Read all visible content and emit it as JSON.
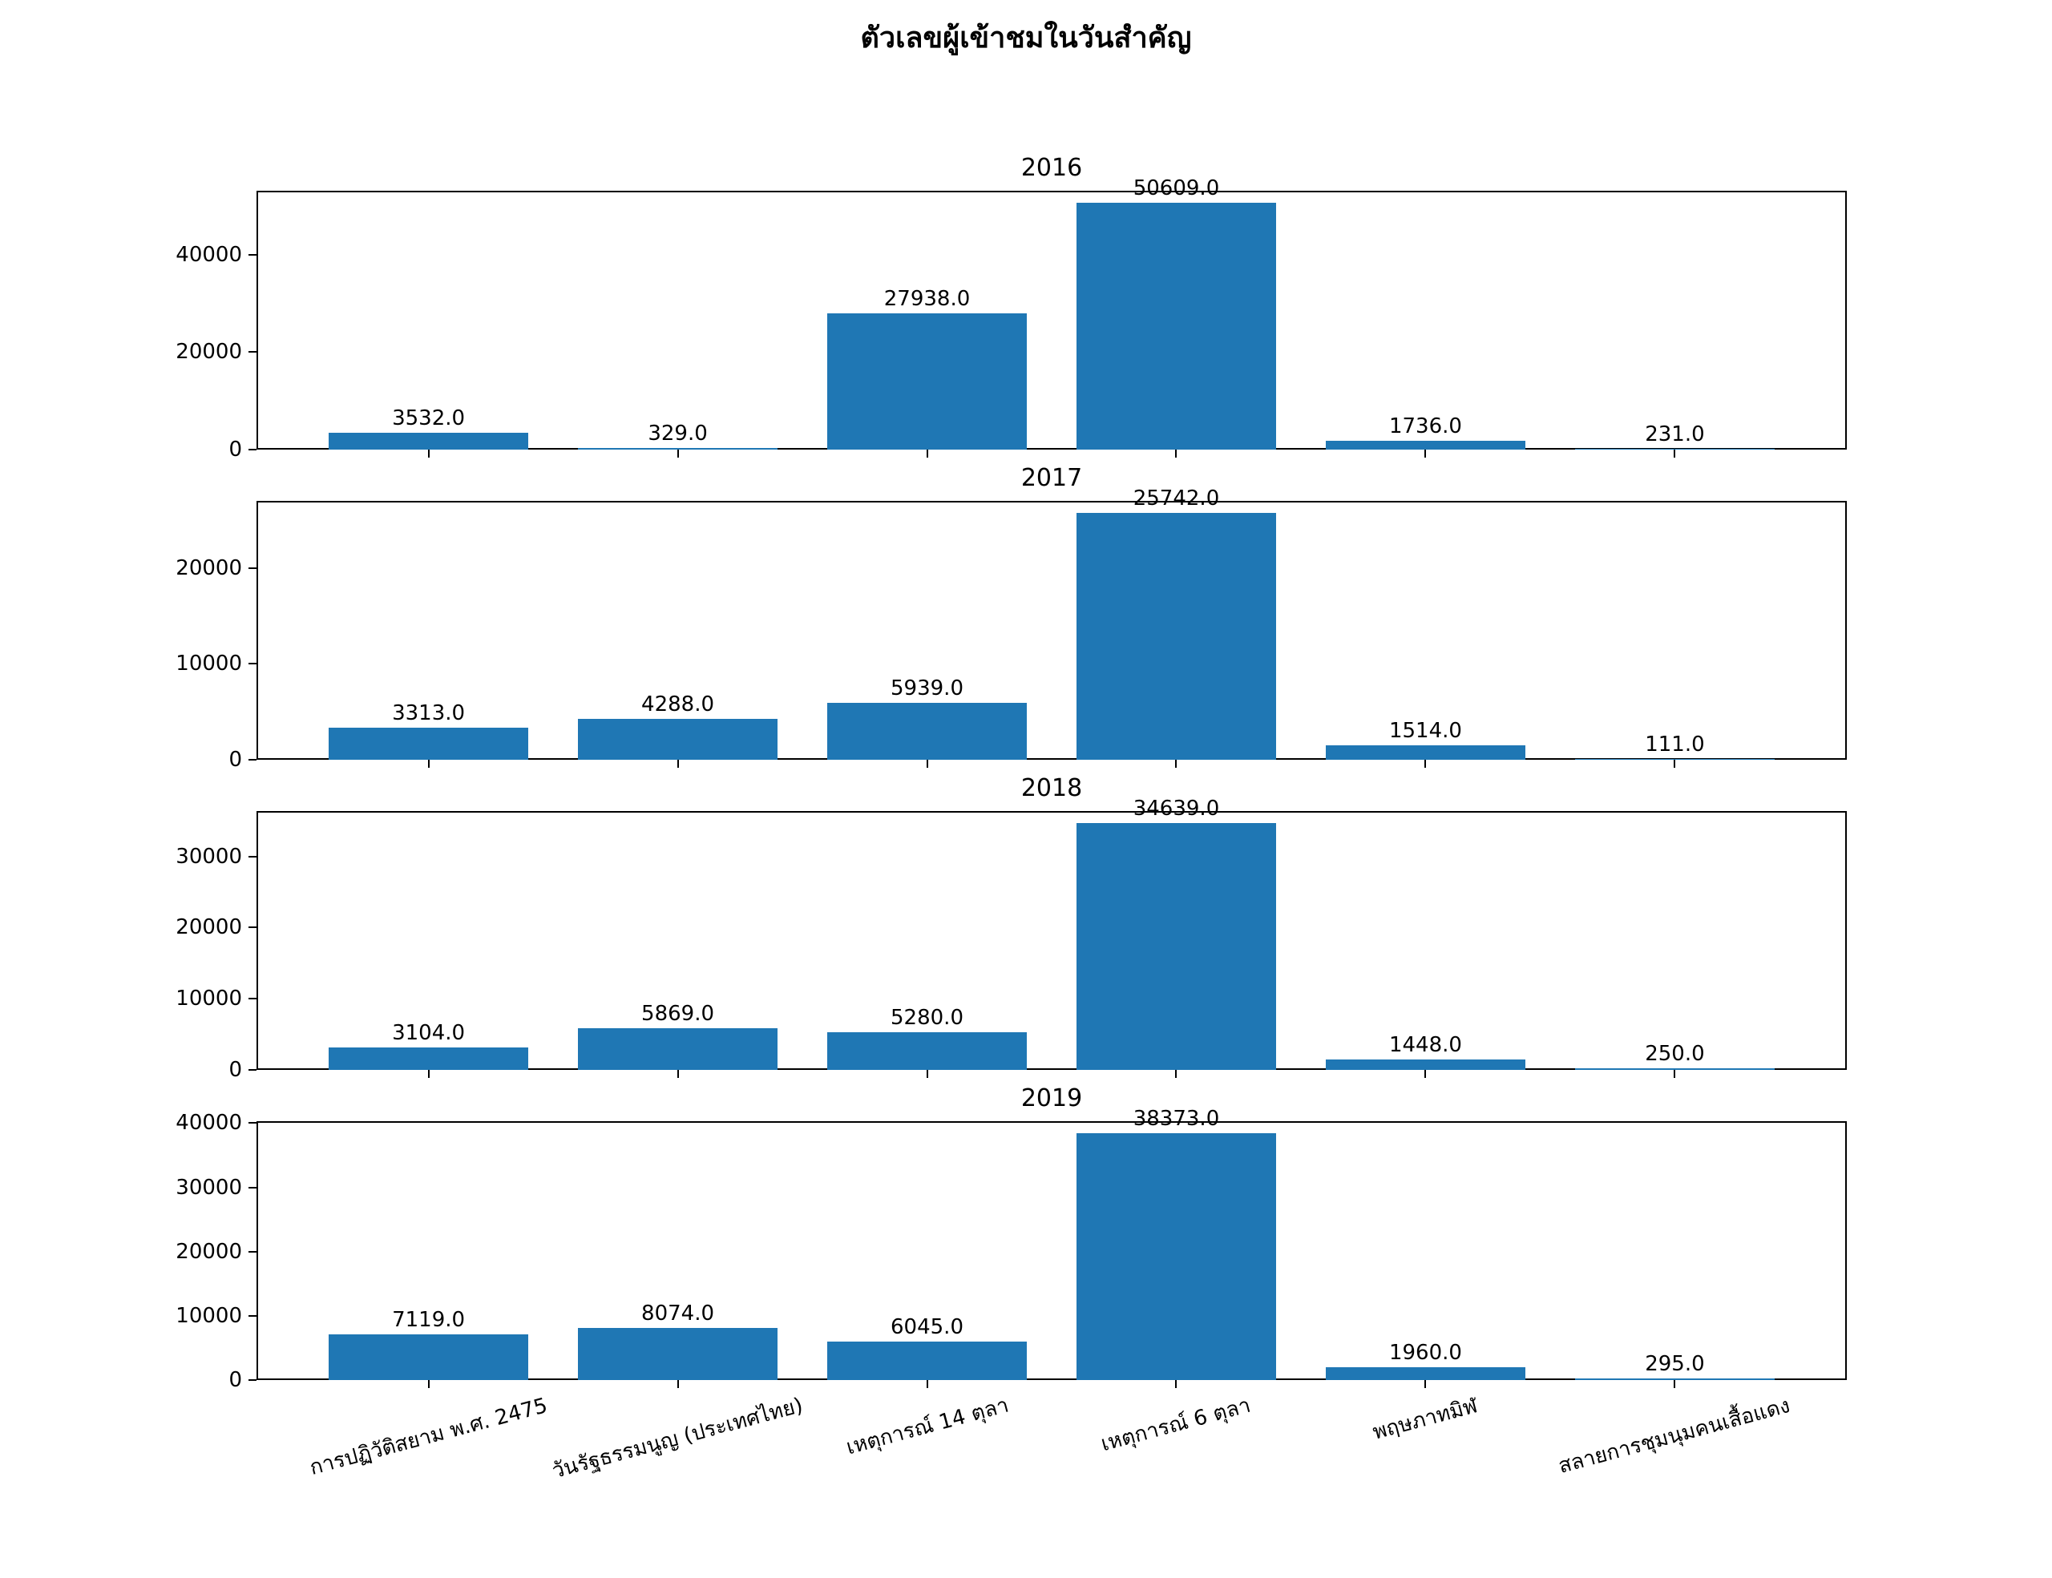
{
  "figure": {
    "title": "ตัวเลขผู้เข้าชมในวันสำคัญ",
    "bar_color": "#1f77b4",
    "text_color": "#000000",
    "background_color": "#ffffff"
  },
  "chart_data": [
    {
      "type": "bar",
      "title": "2016",
      "categories": [
        "การปฏิวัติสยาม พ.ศ. 2475",
        "วันรัฐธรรมนูญ (ประเทศไทย)",
        "เหตุการณ์ 14 ตุลา",
        "เหตุการณ์ 6 ตุลา",
        "พฤษภาทมิฬ",
        "สลายการชุมนุมคนเสื้อแดง"
      ],
      "values": [
        3532.0,
        329.0,
        27938.0,
        50609.0,
        1736.0,
        231.0
      ],
      "value_labels": [
        "3532.0",
        "329.0",
        "27938.0",
        "50609.0",
        "1736.0",
        "231.0"
      ],
      "yticks": [
        0,
        20000,
        40000
      ],
      "ylim": [
        0,
        53139.45
      ],
      "grid": "off",
      "legend": "none"
    },
    {
      "type": "bar",
      "title": "2017",
      "categories": [
        "การปฏิวัติสยาม พ.ศ. 2475",
        "วันรัฐธรรมนูญ (ประเทศไทย)",
        "เหตุการณ์ 14 ตุลา",
        "เหตุการณ์ 6 ตุลา",
        "พฤษภาทมิฬ",
        "สลายการชุมนุมคนเสื้อแดง"
      ],
      "values": [
        3313.0,
        4288.0,
        5939.0,
        25742.0,
        1514.0,
        111.0
      ],
      "value_labels": [
        "3313.0",
        "4288.0",
        "5939.0",
        "25742.0",
        "1514.0",
        "111.0"
      ],
      "yticks": [
        0,
        10000,
        20000
      ],
      "ylim": [
        0,
        27029.1
      ],
      "grid": "off",
      "legend": "none"
    },
    {
      "type": "bar",
      "title": "2018",
      "categories": [
        "การปฏิวัติสยาม พ.ศ. 2475",
        "วันรัฐธรรมนูญ (ประเทศไทย)",
        "เหตุการณ์ 14 ตุลา",
        "เหตุการณ์ 6 ตุลา",
        "พฤษภาทมิฬ",
        "สลายการชุมนุมคนเสื้อแดง"
      ],
      "values": [
        3104.0,
        5869.0,
        5280.0,
        34639.0,
        1448.0,
        250.0
      ],
      "value_labels": [
        "3104.0",
        "5869.0",
        "5280.0",
        "34639.0",
        "1448.0",
        "250.0"
      ],
      "yticks": [
        0,
        10000,
        20000,
        30000
      ],
      "ylim": [
        0,
        36370.95
      ],
      "grid": "off",
      "legend": "none"
    },
    {
      "type": "bar",
      "title": "2019",
      "categories": [
        "การปฏิวัติสยาม พ.ศ. 2475",
        "วันรัฐธรรมนูญ (ประเทศไทย)",
        "เหตุการณ์ 14 ตุลา",
        "เหตุการณ์ 6 ตุลา",
        "พฤษภาทมิฬ",
        "สลายการชุมนุมคนเสื้อแดง"
      ],
      "values": [
        7119.0,
        8074.0,
        6045.0,
        38373.0,
        1960.0,
        295.0
      ],
      "value_labels": [
        "7119.0",
        "8074.0",
        "6045.0",
        "38373.0",
        "1960.0",
        "295.0"
      ],
      "yticks": [
        0,
        10000,
        20000,
        30000,
        40000
      ],
      "ylim": [
        0,
        40291.65
      ],
      "grid": "off",
      "legend": "none"
    }
  ]
}
